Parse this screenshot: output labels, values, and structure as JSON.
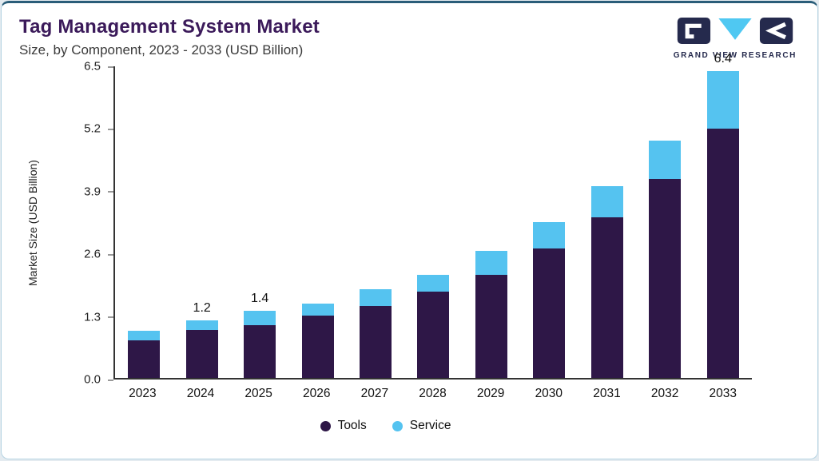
{
  "header": {
    "title": "Tag Management System Market",
    "subtitle": "Size, by Component, 2023 - 2033 (USD Billion)",
    "logo_text": "GRAND VIEW RESEARCH"
  },
  "colors": {
    "tools": "#2e1747",
    "service": "#55c3f0",
    "title": "#3b1a5a",
    "accent_line": "#2a5d79",
    "logo_navy": "#252a4d",
    "logo_blue": "#4fc8f2"
  },
  "chart_data": {
    "type": "bar",
    "stacked": true,
    "title": "Tag Management System Market Size, by Component, 2023 - 2033 (USD Billion)",
    "xlabel": "",
    "ylabel": "Market Size (USD Billion)",
    "ylim": [
      0,
      6.5
    ],
    "yticks": [
      "0.0",
      "1.3",
      "2.6",
      "3.9",
      "5.2",
      "6.5"
    ],
    "grid": false,
    "legend_position": "bottom",
    "categories": [
      "2023",
      "2024",
      "2025",
      "2026",
      "2027",
      "2028",
      "2029",
      "2030",
      "2031",
      "2032",
      "2033"
    ],
    "series": [
      {
        "name": "Tools",
        "color": "#2e1747",
        "values": [
          0.78,
          1.0,
          1.1,
          1.3,
          1.5,
          1.8,
          2.15,
          2.7,
          3.35,
          4.15,
          5.2
        ]
      },
      {
        "name": "Service",
        "color": "#55c3f0",
        "values": [
          0.2,
          0.2,
          0.3,
          0.25,
          0.35,
          0.35,
          0.5,
          0.55,
          0.65,
          0.8,
          1.2
        ]
      }
    ],
    "bar_labels": {
      "2024": "1.2",
      "2025": "1.4",
      "2033": "6.4"
    }
  }
}
